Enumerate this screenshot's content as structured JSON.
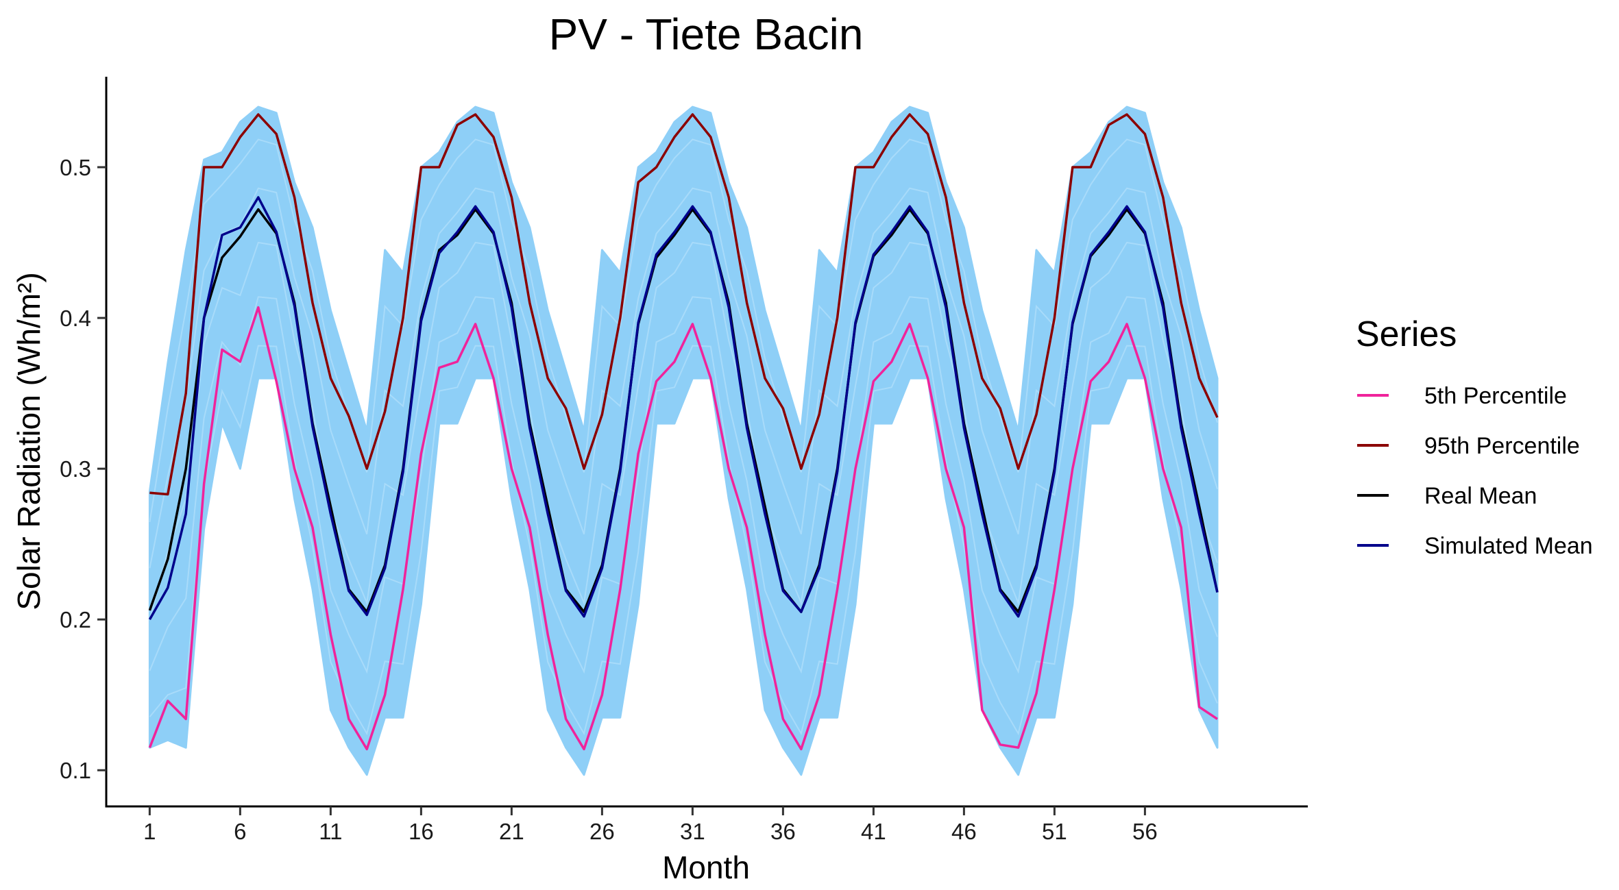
{
  "chart_data": {
    "type": "line",
    "title": "PV - Tiete Bacin",
    "xlabel": "Month",
    "ylabel": "Solar Radiation (Wh/m²)",
    "xlim": [
      -1.4,
      65
    ],
    "ylim": [
      0.076,
      0.56
    ],
    "x_ticks": [
      1,
      6,
      11,
      16,
      21,
      26,
      31,
      36,
      41,
      46,
      51,
      56
    ],
    "y_ticks": [
      0.1,
      0.2,
      0.3,
      0.4,
      0.5
    ],
    "y_tick_labels": [
      "0.1",
      "0.2",
      "0.3",
      "0.4",
      "0.5"
    ],
    "x": [
      1,
      2,
      3,
      4,
      5,
      6,
      7,
      8,
      9,
      10,
      11,
      12,
      13,
      14,
      15,
      16,
      17,
      18,
      19,
      20,
      21,
      22,
      23,
      24,
      25,
      26,
      27,
      28,
      29,
      30,
      31,
      32,
      33,
      34,
      35,
      36,
      37,
      38,
      39,
      40,
      41,
      42,
      43,
      44,
      45,
      46,
      47,
      48,
      49,
      50,
      51,
      52,
      53,
      54,
      55,
      56,
      57,
      58,
      59,
      60
    ],
    "band": {
      "color": "#8ecff7",
      "upper": [
        0.285,
        0.37,
        0.445,
        0.505,
        0.51,
        0.53,
        0.54,
        0.536,
        0.49,
        0.46,
        0.405,
        0.365,
        0.325,
        0.445,
        0.43,
        0.5,
        0.51,
        0.53,
        0.54,
        0.536,
        0.49,
        0.46,
        0.405,
        0.365,
        0.325,
        0.445,
        0.43,
        0.5,
        0.51,
        0.53,
        0.54,
        0.536,
        0.49,
        0.46,
        0.405,
        0.365,
        0.325,
        0.445,
        0.43,
        0.5,
        0.51,
        0.53,
        0.54,
        0.536,
        0.49,
        0.46,
        0.405,
        0.365,
        0.325,
        0.445,
        0.43,
        0.5,
        0.51,
        0.53,
        0.54,
        0.536,
        0.49,
        0.46,
        0.405,
        0.36
      ],
      "lower": [
        0.115,
        0.12,
        0.115,
        0.26,
        0.33,
        0.3,
        0.36,
        0.36,
        0.28,
        0.22,
        0.14,
        0.115,
        0.097,
        0.135,
        0.135,
        0.21,
        0.33,
        0.33,
        0.36,
        0.36,
        0.28,
        0.22,
        0.14,
        0.115,
        0.097,
        0.135,
        0.135,
        0.21,
        0.33,
        0.33,
        0.36,
        0.36,
        0.28,
        0.22,
        0.14,
        0.115,
        0.097,
        0.135,
        0.135,
        0.21,
        0.33,
        0.33,
        0.36,
        0.36,
        0.28,
        0.22,
        0.14,
        0.115,
        0.097,
        0.135,
        0.135,
        0.21,
        0.33,
        0.33,
        0.36,
        0.36,
        0.28,
        0.22,
        0.14,
        0.115
      ]
    },
    "series": [
      {
        "name": "5th Percentile",
        "color": "#f0239b",
        "values": [
          0.115,
          0.146,
          0.134,
          0.29,
          0.379,
          0.371,
          0.407,
          0.358,
          0.3,
          0.261,
          0.19,
          0.134,
          0.114,
          0.15,
          0.22,
          0.31,
          0.367,
          0.371,
          0.396,
          0.36,
          0.3,
          0.261,
          0.19,
          0.134,
          0.114,
          0.15,
          0.22,
          0.31,
          0.358,
          0.371,
          0.396,
          0.36,
          0.3,
          0.261,
          0.19,
          0.134,
          0.114,
          0.15,
          0.22,
          0.3,
          0.358,
          0.371,
          0.396,
          0.36,
          0.3,
          0.261,
          0.14,
          0.117,
          0.115,
          0.151,
          0.22,
          0.3,
          0.358,
          0.371,
          0.396,
          0.36,
          0.3,
          0.261,
          0.142,
          0.134
        ]
      },
      {
        "name": "95th Percentile",
        "color": "#8b0000",
        "values": [
          0.284,
          0.283,
          0.35,
          0.5,
          0.5,
          0.52,
          0.535,
          0.522,
          0.48,
          0.41,
          0.36,
          0.335,
          0.3,
          0.338,
          0.4,
          0.5,
          0.5,
          0.528,
          0.535,
          0.52,
          0.48,
          0.41,
          0.36,
          0.34,
          0.3,
          0.336,
          0.4,
          0.49,
          0.5,
          0.52,
          0.535,
          0.52,
          0.48,
          0.41,
          0.36,
          0.34,
          0.3,
          0.336,
          0.4,
          0.5,
          0.5,
          0.52,
          0.535,
          0.522,
          0.48,
          0.41,
          0.36,
          0.34,
          0.3,
          0.336,
          0.4,
          0.5,
          0.5,
          0.528,
          0.535,
          0.522,
          0.48,
          0.41,
          0.36,
          0.334
        ]
      },
      {
        "name": "Real Mean",
        "color": "#000000",
        "values": [
          0.206,
          0.24,
          0.3,
          0.4,
          0.44,
          0.454,
          0.472,
          0.456,
          0.41,
          0.33,
          0.275,
          0.22,
          0.205,
          0.236,
          0.3,
          0.4,
          0.445,
          0.455,
          0.472,
          0.456,
          0.41,
          0.33,
          0.275,
          0.22,
          0.205,
          0.236,
          0.3,
          0.396,
          0.44,
          0.455,
          0.472,
          0.456,
          0.41,
          0.33,
          0.275,
          0.22,
          0.205,
          0.236,
          0.3,
          0.396,
          0.441,
          0.455,
          0.472,
          0.456,
          0.41,
          0.33,
          0.275,
          0.22,
          0.205,
          0.236,
          0.3,
          0.396,
          0.441,
          0.455,
          0.472,
          0.456,
          0.41,
          0.33,
          0.275,
          0.218
        ]
      },
      {
        "name": "Simulated Mean",
        "color": "#00008b",
        "values": [
          0.2,
          0.221,
          0.27,
          0.4,
          0.455,
          0.46,
          0.48,
          0.457,
          0.408,
          0.328,
          0.27,
          0.219,
          0.203,
          0.234,
          0.298,
          0.398,
          0.443,
          0.457,
          0.474,
          0.457,
          0.407,
          0.327,
          0.27,
          0.219,
          0.202,
          0.234,
          0.298,
          0.397,
          0.442,
          0.457,
          0.474,
          0.457,
          0.407,
          0.327,
          0.27,
          0.219,
          0.205,
          0.234,
          0.298,
          0.397,
          0.442,
          0.457,
          0.474,
          0.457,
          0.407,
          0.327,
          0.27,
          0.219,
          0.202,
          0.234,
          0.298,
          0.397,
          0.442,
          0.457,
          0.474,
          0.457,
          0.407,
          0.327,
          0.27,
          0.218
        ]
      }
    ],
    "legend": {
      "title": "Series",
      "position": "right"
    },
    "grid": false
  }
}
